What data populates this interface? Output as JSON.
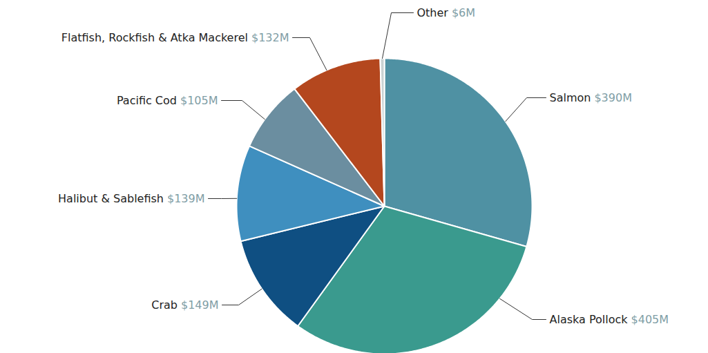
{
  "chart_data": {
    "type": "pie",
    "categories": [
      "Salmon",
      "Alaska Pollock",
      "Crab",
      "Halibut & Sablefish",
      "Pacific Cod",
      "Flatfish, Rockfish & Atka Mackerel",
      "Other"
    ],
    "values": [
      390,
      405,
      149,
      139,
      105,
      132,
      6
    ],
    "value_labels": [
      "$390M",
      "$405M",
      "$149M",
      "$139M",
      "$105M",
      "$132M",
      "$6M"
    ],
    "colors": [
      "#4f91a3",
      "#3a9a8e",
      "#0f4f82",
      "#3f8fbf",
      "#6b8ea0",
      "#b4471e",
      "#c9d2d3"
    ],
    "data_labels": true
  }
}
